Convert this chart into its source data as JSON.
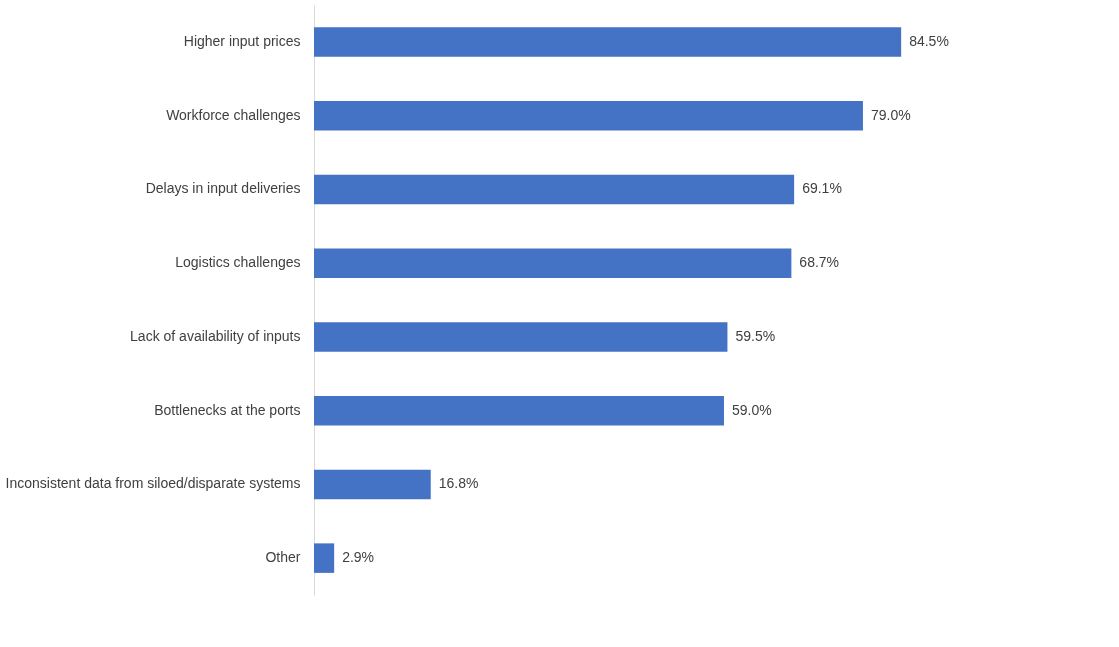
{
  "chart_data": {
    "type": "bar",
    "orientation": "horizontal",
    "categories": [
      "Higher input prices",
      "Workforce challenges",
      "Delays in input deliveries",
      "Logistics challenges",
      "Lack of availability of inputs",
      "Bottlenecks at the ports",
      "Inconsistent data from siloed/disparate systems",
      "Other"
    ],
    "values": [
      84.5,
      79.0,
      69.1,
      68.7,
      59.5,
      59.0,
      16.8,
      2.9
    ],
    "value_labels": [
      "84.5%",
      "79.0%",
      "69.1%",
      "68.7%",
      "59.5%",
      "59.0%",
      "16.8%",
      "2.9%"
    ],
    "color": "#4472c4"
  }
}
